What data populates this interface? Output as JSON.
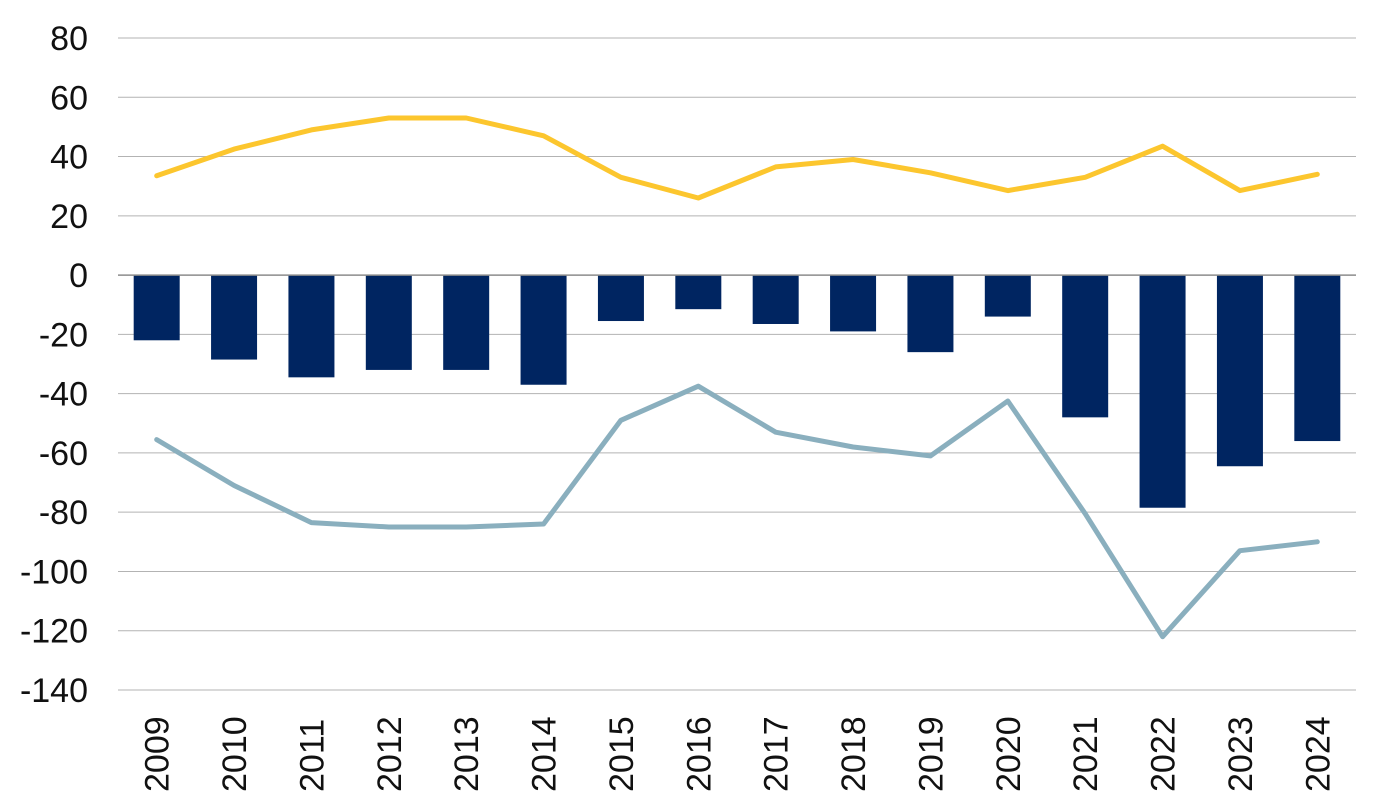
{
  "chart_data": {
    "type": "bar",
    "title": "",
    "xlabel": "",
    "ylabel": "",
    "ylim": [
      -140,
      80
    ],
    "yticks": [
      80,
      60,
      40,
      20,
      0,
      -20,
      -40,
      -60,
      -80,
      -100,
      -120,
      -140
    ],
    "ytick_labels": [
      "80",
      "60",
      "40",
      "20",
      "0",
      "-20",
      "-40",
      "-60",
      "-80",
      "-100",
      "-120",
      "-140"
    ],
    "categories": [
      "2009",
      "2010",
      "2011",
      "2012",
      "2013",
      "2014",
      "2015",
      "2016",
      "2017",
      "2018",
      "2019",
      "2020",
      "2021",
      "2022",
      "2023",
      "2024"
    ],
    "x_label_rotation": "vertical",
    "grid": true,
    "legend": "none",
    "series": [
      {
        "type": "bar",
        "color": "#002561",
        "values": [
          -22,
          -28.5,
          -34.5,
          -32,
          -32,
          -37,
          -15.5,
          -11.5,
          -16.5,
          -19,
          -26,
          -14,
          -48,
          -78.5,
          -64.5,
          -56
        ]
      },
      {
        "type": "line",
        "color": "#FCC62E",
        "values": [
          33.5,
          42.5,
          49,
          53,
          53,
          47,
          33,
          26,
          36.5,
          39,
          34.5,
          28.5,
          33,
          43.5,
          28.5,
          34
        ]
      },
      {
        "type": "line",
        "color": "#8AAFBE",
        "values": [
          -55.5,
          -71,
          -83.5,
          -85,
          -85,
          -84,
          -49,
          -37.5,
          -53,
          -58,
          -61,
          -42.5,
          -80.5,
          -122,
          -93,
          -90
        ]
      }
    ]
  }
}
